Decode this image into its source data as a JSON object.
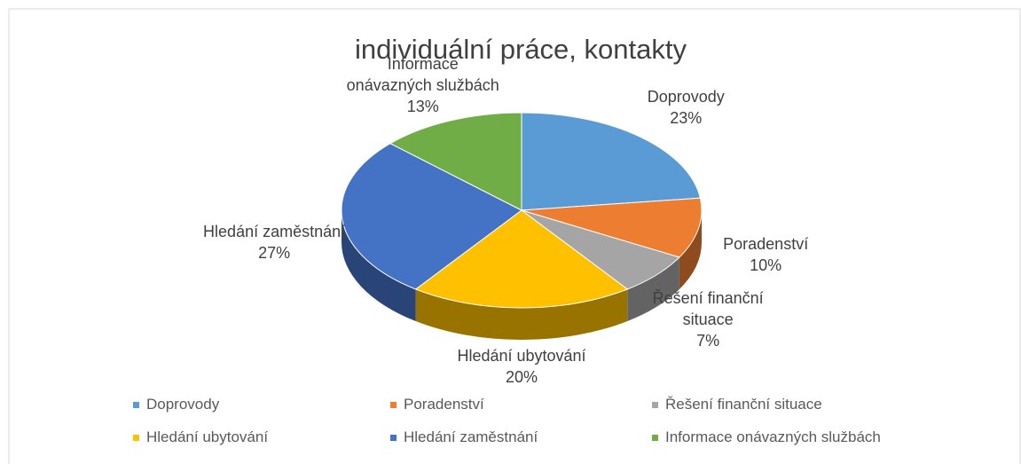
{
  "chart_data": {
    "type": "pie",
    "title": "individuální práce, kontakty",
    "categories": [
      "Doprovody",
      "Poradenství",
      "Řešení finanční situace",
      "Hledání ubytování",
      "Hledání zaměstnání",
      "Informace onávazných službách"
    ],
    "values": [
      23,
      10,
      7,
      20,
      27,
      13
    ],
    "value_labels": [
      "23%",
      "10%",
      "7%",
      "20%",
      "27%",
      "13%"
    ],
    "colors": [
      "#5b9bd5",
      "#ed7d31",
      "#a5a5a5",
      "#ffc000",
      "#4472c4",
      "#70ad47"
    ],
    "legend": "bottom"
  }
}
